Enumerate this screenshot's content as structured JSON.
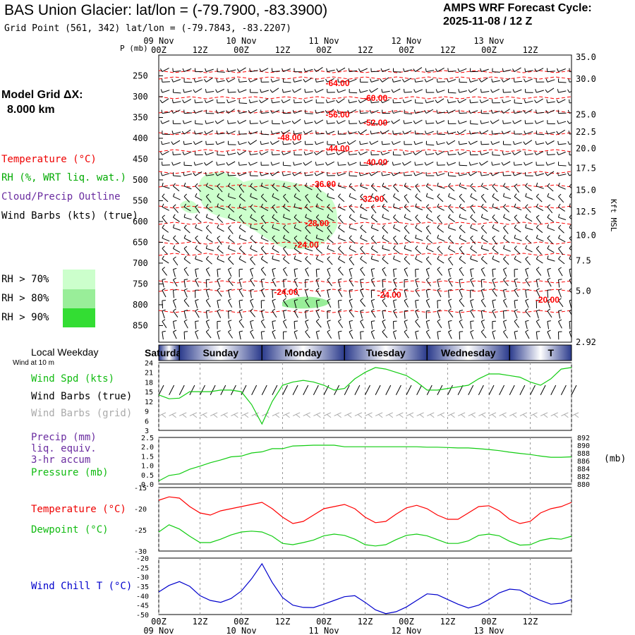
{
  "header": {
    "title": "BAS Union Glacier:  lat/lon = (-79.7900, -83.3900)",
    "grid_point": "Grid Point (561, 342) lat/lon = (-79.7843, -83.2207)",
    "cycle_line1": "AMPS WRF Forecast Cycle:",
    "cycle_line2": "2025-11-08 / 12  Z"
  },
  "legend": {
    "model_grid_label": "Model Grid ΔX:",
    "model_grid_value": "8.000 km",
    "temperature": "Temperature (°C)",
    "rh": "RH (%, WRT liq. wat.)",
    "cloud": "Cloud/Precip Outline",
    "wind": "Wind Barbs (kts) (true)",
    "rh70": "RH > 70%",
    "rh80": "RH > 80%",
    "rh90": "RH > 90%",
    "p_unit": "P (mb)",
    "kft_unit": "Kft MSL",
    "local_weekday": "Local Weekday",
    "wind_at": "Wind at 10 m",
    "wind_spd": "Wind Spd (kts)",
    "wind_barbs_true": "Wind Barbs (true)",
    "wind_barbs_grid": "Wind Barbs (grid)",
    "precip1": "Precip (mm)",
    "precip2": "liq. equiv.",
    "precip3": "3-hr accum",
    "pressure": "Pressure (mb)",
    "mb_unit": "(mb)",
    "temp2": "Temperature (°C)",
    "dewpoint": "Dewpoint (°C)",
    "windchill": "Wind Chill T (°C)"
  },
  "colors": {
    "temp": "#ff0000",
    "rh": "#00bb00",
    "cloud": "#6a2ca0",
    "wind": "#000000",
    "grid_barb": "#aaaaaa",
    "windchill": "#0000cc",
    "green_line": "#11cc11",
    "rh70": "#ccffcc",
    "rh80": "#99ee99",
    "rh90": "#33dd33"
  },
  "chart_data": [
    {
      "type": "heatmap",
      "name": "cross-section",
      "time_axis": {
        "dates_top": [
          "09 Nov",
          "10 Nov",
          "11 Nov",
          "12 Nov",
          "13 Nov"
        ],
        "hours": [
          "00Z",
          "12Z",
          "00Z",
          "12Z",
          "00Z",
          "12Z",
          "00Z",
          "12Z",
          "00Z",
          "12Z"
        ],
        "range_hours": [
          0,
          120
        ]
      },
      "pressure_levels": [
        250,
        300,
        350,
        400,
        450,
        500,
        550,
        600,
        650,
        700,
        750,
        800,
        850
      ],
      "kft_levels": [
        "35.0",
        "30.0",
        "25.0",
        "22.5",
        "20.0",
        "17.5",
        "15.0",
        "12.5",
        "10.0",
        "7.5",
        "5.0",
        "2.92"
      ],
      "kft_pressures": [
        205,
        258,
        343,
        385,
        425,
        472,
        525,
        576,
        633,
        694,
        767,
        890
      ],
      "p_range": [
        200,
        890
      ],
      "temp_labels": [
        {
          "text": "-64.00",
          "t": 52,
          "p": 268
        },
        {
          "text": "-60.00",
          "t": 63,
          "p": 303
        },
        {
          "text": "-56.00",
          "t": 52,
          "p": 343
        },
        {
          "text": "-52.00",
          "t": 63,
          "p": 363
        },
        {
          "text": "-48.00",
          "t": 38,
          "p": 398
        },
        {
          "text": "-44.00",
          "t": 52,
          "p": 425
        },
        {
          "text": "-40.00",
          "t": 63,
          "p": 458
        },
        {
          "text": "-36.00",
          "t": 48,
          "p": 510
        },
        {
          "text": "-32.00",
          "t": 62,
          "p": 546
        },
        {
          "text": "-28.00",
          "t": 46,
          "p": 604
        },
        {
          "text": "-24.00",
          "t": 43,
          "p": 656
        },
        {
          "text": "-24.00",
          "t": 37,
          "p": 770
        },
        {
          "text": "-24.00",
          "t": 67,
          "p": 776
        },
        {
          "text": "-20.00",
          "t": 113,
          "p": 788
        }
      ]
    },
    {
      "type": "line",
      "name": "wind-speed",
      "weekdays": [
        "Saturday",
        "Sunday",
        "Monday",
        "Tuesday",
        "Wednesday",
        "T"
      ],
      "y_ticks": [
        3,
        6,
        9,
        12,
        15,
        18,
        21,
        24
      ],
      "ylim": [
        3,
        24
      ],
      "x_hours": [
        0,
        3,
        6,
        9,
        12,
        15,
        18,
        21,
        24,
        27,
        30,
        33,
        36,
        39,
        42,
        45,
        48,
        51,
        54,
        57,
        60,
        63,
        66,
        69,
        72,
        75,
        78,
        81,
        84,
        87,
        90,
        93,
        96,
        99,
        102,
        105,
        108,
        111,
        114,
        117,
        120
      ],
      "series": [
        {
          "values": [
            14,
            12.8,
            13,
            15,
            15,
            15,
            15.5,
            15.5,
            15,
            11,
            5,
            12,
            17,
            18,
            18.5,
            18,
            17,
            15.5,
            16,
            19,
            21,
            22.5,
            22,
            21,
            20,
            18,
            15.5,
            15.5,
            16,
            16.5,
            17,
            19,
            20.5,
            20.5,
            20,
            19.5,
            18,
            17,
            19,
            22,
            22.5
          ]
        }
      ]
    },
    {
      "type": "line",
      "name": "precip-pressure",
      "precip_ticks": [
        "0.0",
        "0.5",
        "1.0",
        "1.5",
        "2.0",
        "2.5"
      ],
      "pressure_ticks": [
        "880",
        "882",
        "884",
        "886",
        "888",
        "890",
        "892"
      ],
      "precip_ylim": [
        0,
        2.5
      ],
      "pressure_ylim": [
        880,
        892
      ],
      "x_hours": [
        0,
        3,
        6,
        9,
        12,
        15,
        18,
        21,
        24,
        27,
        30,
        33,
        36,
        39,
        42,
        45,
        48,
        51,
        54,
        57,
        60,
        63,
        66,
        69,
        72,
        75,
        78,
        81,
        84,
        87,
        90,
        93,
        96,
        99,
        102,
        105,
        108,
        111,
        114,
        117,
        120
      ],
      "series": [
        {
          "name": "Pressure (mb)",
          "values": [
            880.8,
            882.2,
            882.6,
            883.8,
            884.6,
            885.5,
            886.2,
            887,
            887.2,
            888,
            888.3,
            889.1,
            889.1,
            889.8,
            889.9,
            890,
            890,
            890,
            889.6,
            889.6,
            889.6,
            889.6,
            889.6,
            889.6,
            889.6,
            889.6,
            889.5,
            889.5,
            889.4,
            889.3,
            889.3,
            889.1,
            888.9,
            888.6,
            888.2,
            887.9,
            887.6,
            887.2,
            886.9,
            886.9,
            887
          ]
        }
      ]
    },
    {
      "type": "line",
      "name": "temperature-dewpoint",
      "y_ticks": [
        -30,
        -25,
        -20,
        -15
      ],
      "ylim": [
        -30,
        -15
      ],
      "x_hours": [
        0,
        3,
        6,
        9,
        12,
        15,
        18,
        21,
        24,
        27,
        30,
        33,
        36,
        39,
        42,
        45,
        48,
        51,
        54,
        57,
        60,
        63,
        66,
        69,
        72,
        75,
        78,
        81,
        84,
        87,
        90,
        93,
        96,
        99,
        102,
        105,
        108,
        111,
        114,
        117,
        120
      ],
      "series": [
        {
          "name": "Temperature (°C)",
          "values": [
            -18,
            -17.2,
            -17.5,
            -19.5,
            -21,
            -21.5,
            -20.5,
            -20,
            -19.5,
            -19,
            -18.5,
            -20,
            -22,
            -23.5,
            -23,
            -21.5,
            -20,
            -19.5,
            -19,
            -20,
            -22,
            -23.3,
            -23,
            -21.3,
            -19.8,
            -19.2,
            -20,
            -21.5,
            -22.5,
            -22.5,
            -21,
            -19.5,
            -19.3,
            -20.5,
            -22.5,
            -23.5,
            -23,
            -21,
            -20,
            -19.5,
            -18.5
          ]
        },
        {
          "name": "Dewpoint (°C)",
          "values": [
            -25.5,
            -23.8,
            -24.8,
            -26.5,
            -28,
            -28,
            -27.2,
            -26.2,
            -25.5,
            -25.3,
            -25.5,
            -26.5,
            -28.2,
            -28.5,
            -28,
            -27.4,
            -26.4,
            -26,
            -26.3,
            -27.2,
            -28.5,
            -28.8,
            -28.5,
            -27.3,
            -26.3,
            -26,
            -26.4,
            -27.3,
            -28.2,
            -28.2,
            -27.6,
            -26.3,
            -26,
            -26.4,
            -27.7,
            -28.6,
            -28.5,
            -27.5,
            -27,
            -27.2,
            -26.5
          ]
        }
      ]
    },
    {
      "type": "line",
      "name": "wind-chill",
      "y_ticks": [
        -50,
        -45,
        -40,
        -35,
        -30,
        -25,
        -20
      ],
      "ylim": [
        -50,
        -20
      ],
      "x_hours": [
        0,
        3,
        6,
        9,
        12,
        15,
        18,
        21,
        24,
        27,
        30,
        33,
        36,
        39,
        42,
        45,
        48,
        51,
        54,
        57,
        60,
        63,
        66,
        69,
        72,
        75,
        78,
        81,
        84,
        87,
        90,
        93,
        96,
        99,
        102,
        105,
        108,
        111,
        114,
        117,
        120
      ],
      "series": [
        {
          "values": [
            -38,
            -34.5,
            -32.5,
            -35,
            -40,
            -42.5,
            -43.5,
            -41.5,
            -37.5,
            -31,
            -23,
            -33,
            -41,
            -45,
            -46.2,
            -46.3,
            -44.5,
            -42.5,
            -40.5,
            -40,
            -43.5,
            -47.5,
            -49.5,
            -48.5,
            -46,
            -42.5,
            -39,
            -39.5,
            -42,
            -44.5,
            -46.5,
            -45,
            -42,
            -38.5,
            -36.5,
            -37,
            -40,
            -42.5,
            -44.5,
            -44,
            -42
          ]
        }
      ]
    }
  ]
}
